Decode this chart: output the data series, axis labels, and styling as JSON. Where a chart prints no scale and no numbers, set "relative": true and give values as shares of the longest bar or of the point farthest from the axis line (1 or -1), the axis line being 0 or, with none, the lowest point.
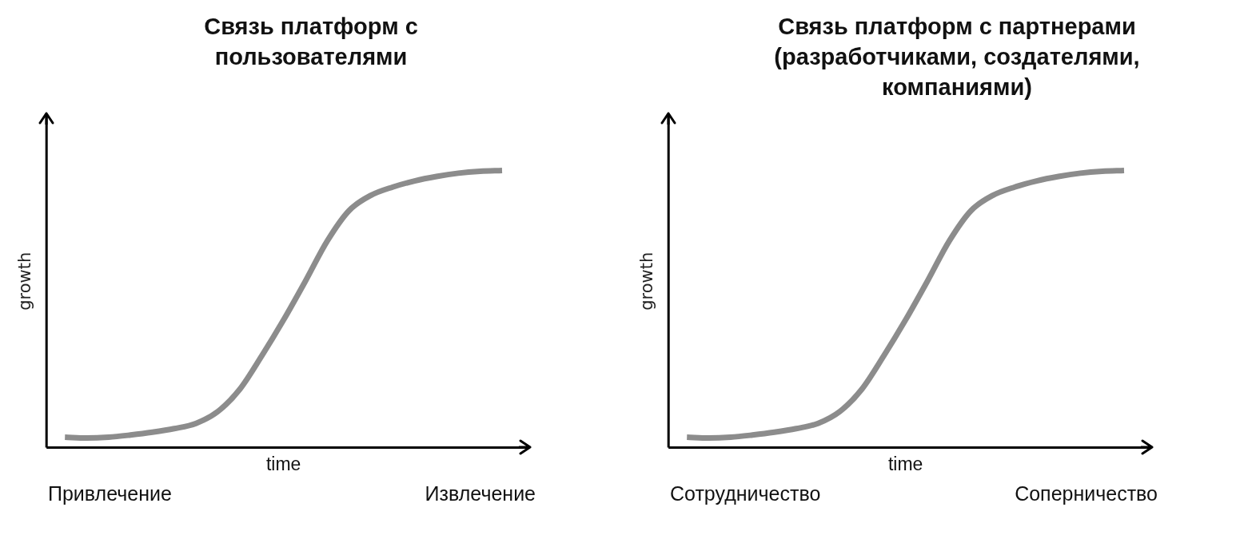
{
  "chart_data": [
    {
      "type": "line",
      "title": "Связь платформ с пользователями",
      "xlabel": "time",
      "ylabel": "growth",
      "relative": true,
      "color": "#8c8c8c",
      "categories": [
        null,
        null,
        null,
        null,
        null,
        null,
        null,
        null,
        null,
        null,
        null,
        null,
        null,
        null,
        null,
        null,
        null,
        null,
        null,
        null,
        null
      ],
      "values": [
        0.037,
        0.034,
        0.037,
        0.045,
        0.055,
        0.068,
        0.087,
        0.13,
        0.21,
        0.33,
        0.46,
        0.6,
        0.745,
        0.855,
        0.91,
        0.94,
        0.962,
        0.978,
        0.99,
        0.997,
        1
      ],
      "annotations": [
        "Привлечение",
        "Извлечение"
      ]
    },
    {
      "type": "line",
      "title": "Связь платформ с партнерами (разработчиками, создателями, компаниями)",
      "xlabel": "time",
      "ylabel": "growth",
      "relative": true,
      "color": "#8c8c8c",
      "categories": [
        null,
        null,
        null,
        null,
        null,
        null,
        null,
        null,
        null,
        null,
        null,
        null,
        null,
        null,
        null,
        null,
        null,
        null,
        null,
        null,
        null
      ],
      "values": [
        0.037,
        0.034,
        0.037,
        0.045,
        0.055,
        0.068,
        0.087,
        0.13,
        0.21,
        0.33,
        0.46,
        0.6,
        0.745,
        0.855,
        0.91,
        0.94,
        0.962,
        0.978,
        0.99,
        0.997,
        1
      ],
      "annotations": [
        "Сотрудничество",
        "Соперничество"
      ]
    }
  ]
}
